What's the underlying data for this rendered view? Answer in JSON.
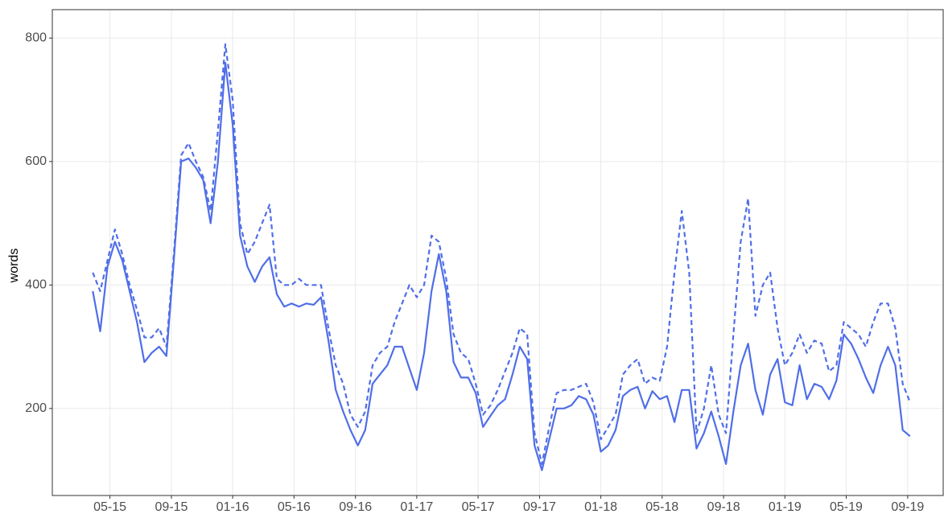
{
  "chart_data": {
    "type": "line",
    "y_label": "words",
    "x": [
      2015.24,
      2015.28,
      2015.32,
      2015.36,
      2015.4,
      2015.44,
      2015.48,
      2015.52,
      2015.56,
      2015.6,
      2015.64,
      2015.68,
      2015.72,
      2015.76,
      2015.8,
      2015.84,
      2015.88,
      2015.92,
      2015.96,
      2016.0,
      2016.04,
      2016.08,
      2016.12,
      2016.16,
      2016.2,
      2016.24,
      2016.28,
      2016.32,
      2016.36,
      2016.4,
      2016.44,
      2016.48,
      2016.52,
      2016.56,
      2016.6,
      2016.64,
      2016.68,
      2016.72,
      2016.76,
      2016.8,
      2016.84,
      2016.88,
      2016.92,
      2016.96,
      2017.0,
      2017.04,
      2017.08,
      2017.12,
      2017.16,
      2017.2,
      2017.24,
      2017.28,
      2017.32,
      2017.36,
      2017.4,
      2017.44,
      2017.48,
      2017.52,
      2017.56,
      2017.6,
      2017.64,
      2017.68,
      2017.72,
      2017.76,
      2017.8,
      2017.84,
      2017.88,
      2017.92,
      2017.96,
      2018.0,
      2018.04,
      2018.08,
      2018.12,
      2018.16,
      2018.2,
      2018.24,
      2018.28,
      2018.32,
      2018.36,
      2018.4,
      2018.44,
      2018.48,
      2018.52,
      2018.56,
      2018.6,
      2018.64,
      2018.68,
      2018.72,
      2018.76,
      2018.8,
      2018.84,
      2018.88,
      2018.92,
      2018.96,
      2019.0,
      2019.04,
      2019.08,
      2019.12,
      2019.16,
      2019.2,
      2019.24,
      2019.28,
      2019.32,
      2019.36,
      2019.4,
      2019.44,
      2019.48,
      2019.52,
      2019.56,
      2019.6,
      2019.64,
      2019.68
    ],
    "series": [
      {
        "color": "#4f6ee8",
        "dash": "solid",
        "values": [
          390,
          325,
          430,
          470,
          440,
          390,
          340,
          275,
          290,
          300,
          285,
          440,
          600,
          605,
          590,
          570,
          500,
          600,
          760,
          660,
          480,
          430,
          405,
          430,
          445,
          385,
          365,
          370,
          365,
          370,
          368,
          380,
          310,
          230,
          195,
          165,
          140,
          165,
          240,
          255,
          270,
          300,
          300,
          265,
          230,
          290,
          390,
          450,
          390,
          275,
          250,
          250,
          225,
          170,
          188,
          205,
          215,
          255,
          300,
          280,
          140,
          100,
          150,
          200,
          200,
          205,
          220,
          215,
          190,
          130,
          140,
          165,
          220,
          230,
          235,
          200,
          228,
          215,
          220,
          178,
          230,
          230,
          135,
          160,
          195,
          155,
          110,
          195,
          270,
          305,
          230,
          190,
          255,
          280,
          210,
          205,
          270,
          215,
          240,
          235,
          215,
          245,
          320,
          305,
          280,
          250,
          225,
          270,
          300,
          270,
          165,
          155
        ]
      },
      {
        "color": "#4f6ee8",
        "dash": "dashed",
        "values": [
          420,
          390,
          440,
          490,
          450,
          400,
          360,
          315,
          315,
          330,
          300,
          450,
          610,
          630,
          600,
          575,
          520,
          650,
          790,
          700,
          500,
          450,
          470,
          500,
          530,
          410,
          400,
          400,
          410,
          400,
          400,
          400,
          330,
          270,
          240,
          190,
          170,
          195,
          270,
          290,
          300,
          340,
          370,
          400,
          380,
          400,
          480,
          470,
          410,
          320,
          290,
          280,
          240,
          190,
          205,
          230,
          260,
          290,
          330,
          320,
          160,
          110,
          170,
          225,
          230,
          230,
          235,
          240,
          210,
          150,
          170,
          190,
          255,
          270,
          280,
          240,
          250,
          245,
          300,
          420,
          520,
          420,
          160,
          200,
          270,
          190,
          160,
          320,
          470,
          540,
          350,
          400,
          420,
          330,
          270,
          290,
          320,
          290,
          310,
          305,
          260,
          270,
          340,
          330,
          320,
          300,
          340,
          370,
          370,
          330,
          240,
          210
        ]
      }
    ],
    "xlim": [
      2015.02,
      2019.86
    ],
    "xticks": [
      {
        "value": 2015.333,
        "label": "05-15"
      },
      {
        "value": 2015.667,
        "label": "09-15"
      },
      {
        "value": 2016.0,
        "label": "01-16"
      },
      {
        "value": 2016.333,
        "label": "05-16"
      },
      {
        "value": 2016.667,
        "label": "09-16"
      },
      {
        "value": 2017.0,
        "label": "01-17"
      },
      {
        "value": 2017.333,
        "label": "05-17"
      },
      {
        "value": 2017.667,
        "label": "09-17"
      },
      {
        "value": 2018.0,
        "label": "01-18"
      },
      {
        "value": 2018.333,
        "label": "05-18"
      },
      {
        "value": 2018.667,
        "label": "09-18"
      },
      {
        "value": 2019.0,
        "label": "01-19"
      },
      {
        "value": 2019.333,
        "label": "05-19"
      },
      {
        "value": 2019.667,
        "label": "09-19"
      }
    ],
    "ylim": [
      59,
      846
    ],
    "yticks": [
      200,
      400,
      600,
      800
    ],
    "grid": true
  }
}
